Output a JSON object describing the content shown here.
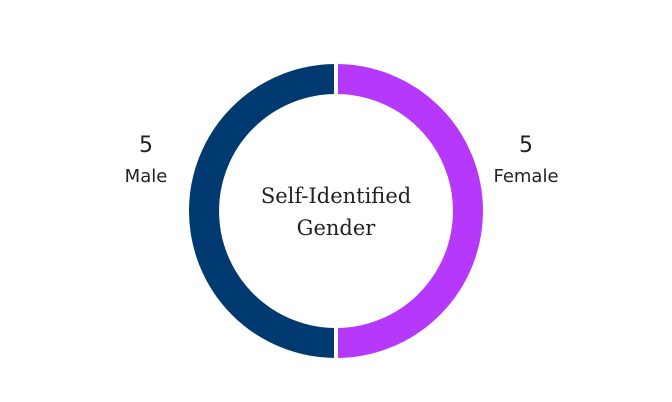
{
  "chart_data": {
    "type": "donut",
    "title": "Self-Identified Gender",
    "categories": [
      "Female",
      "Male"
    ],
    "values": [
      5,
      5
    ],
    "colors": [
      "#b538fb",
      "#003a70"
    ]
  }
}
